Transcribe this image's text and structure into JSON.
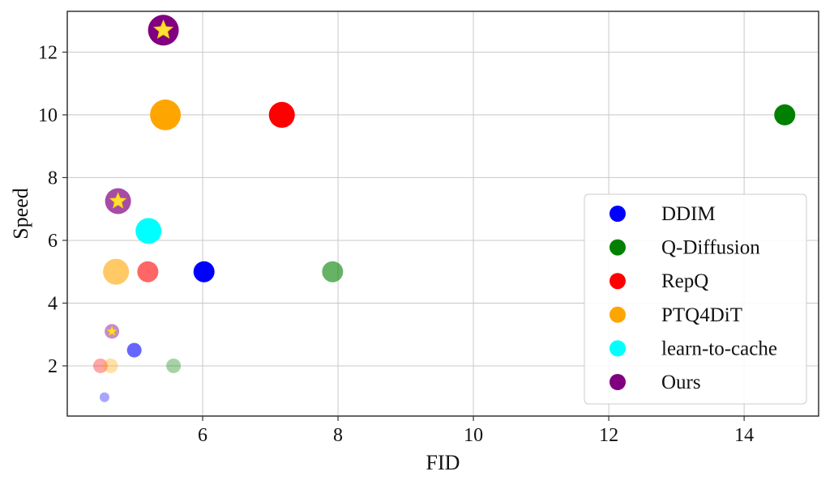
{
  "chart_data": {
    "type": "scatter",
    "title": "",
    "xlabel": "FID",
    "ylabel": "Speed",
    "xlim": [
      4.0,
      15.1
    ],
    "ylim": [
      0.4,
      13.3
    ],
    "xticks": [
      6,
      8,
      10,
      12,
      14
    ],
    "yticks": [
      2,
      4,
      6,
      8,
      10,
      12
    ],
    "grid": true,
    "legend_position": "lower-right",
    "series": [
      {
        "name": "DDIM",
        "color": "#0000ff",
        "points": [
          {
            "x": 6.02,
            "y": 5.0,
            "size": 3,
            "alpha": 1.0
          },
          {
            "x": 4.99,
            "y": 2.5,
            "size": 2,
            "alpha": 0.6
          },
          {
            "x": 4.55,
            "y": 1.0,
            "size": 1,
            "alpha": 0.35
          }
        ]
      },
      {
        "name": "Q-Diffusion",
        "color": "#008000",
        "points": [
          {
            "x": 14.6,
            "y": 10.0,
            "size": 3,
            "alpha": 1.0
          },
          {
            "x": 7.92,
            "y": 5.0,
            "size": 3,
            "alpha": 0.6
          },
          {
            "x": 5.57,
            "y": 2.0,
            "size": 2,
            "alpha": 0.35
          }
        ]
      },
      {
        "name": "RepQ",
        "color": "#ff0000",
        "points": [
          {
            "x": 7.17,
            "y": 10.0,
            "size": 4,
            "alpha": 1.0
          },
          {
            "x": 5.19,
            "y": 5.0,
            "size": 3,
            "alpha": 0.6
          },
          {
            "x": 4.49,
            "y": 2.0,
            "size": 2,
            "alpha": 0.35
          }
        ]
      },
      {
        "name": "PTQ4DiT",
        "color": "#ffa500",
        "points": [
          {
            "x": 5.45,
            "y": 10.0,
            "size": 5,
            "alpha": 1.0
          },
          {
            "x": 4.72,
            "y": 5.0,
            "size": 4,
            "alpha": 0.6
          },
          {
            "x": 4.64,
            "y": 2.0,
            "size": 2,
            "alpha": 0.35
          }
        ]
      },
      {
        "name": "learn-to-cache",
        "color": "#00ffff",
        "points": [
          {
            "x": 5.2,
            "y": 6.3,
            "size": 4,
            "alpha": 1.0
          }
        ]
      },
      {
        "name": "Ours",
        "color": "#800080",
        "star": true,
        "points": [
          {
            "x": 5.42,
            "y": 12.7,
            "size": 5,
            "alpha": 1.0
          },
          {
            "x": 4.75,
            "y": 7.25,
            "size": 4,
            "alpha": 0.7
          },
          {
            "x": 4.66,
            "y": 3.1,
            "size": 2,
            "alpha": 0.45
          }
        ]
      }
    ]
  }
}
